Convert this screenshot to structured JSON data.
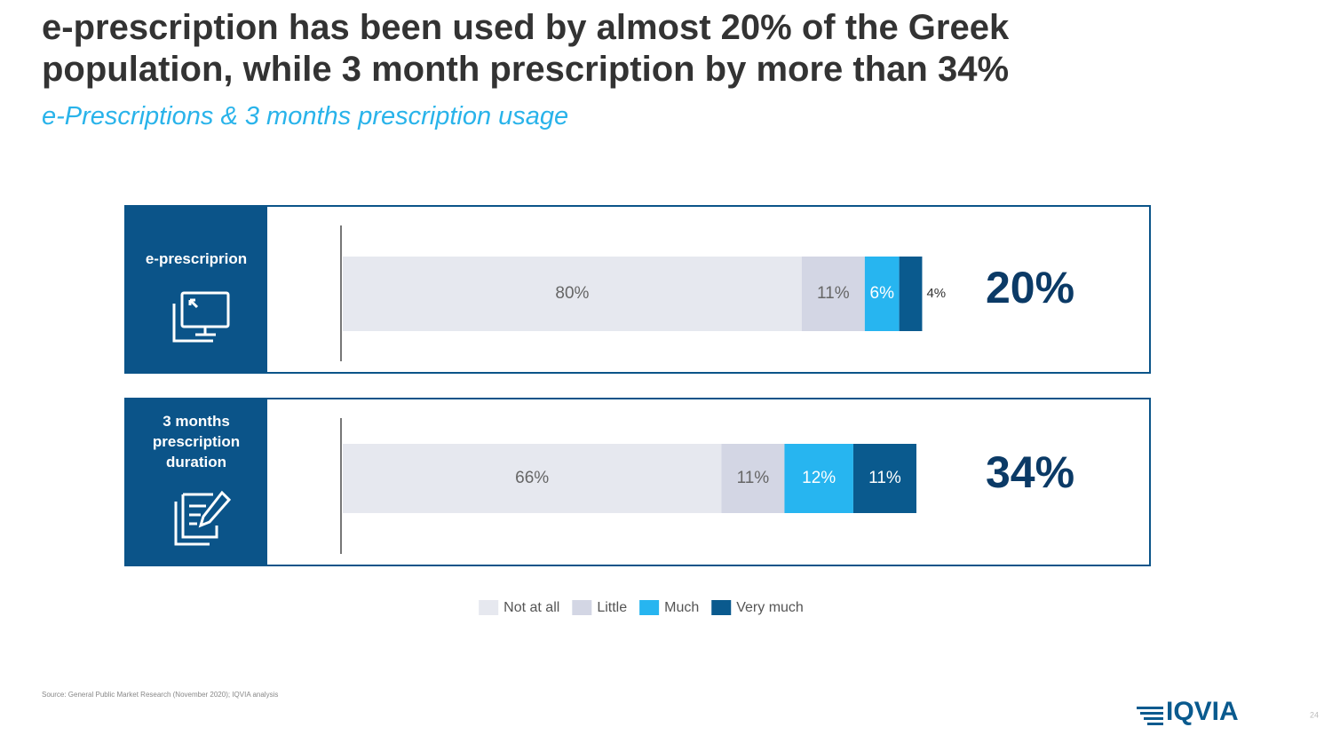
{
  "header": {
    "title": "e-prescription has been used by almost 20% of the Greek population, while 3 month prescription by more than 34%",
    "subtitle": "e-Prescriptions & 3 months prescription usage"
  },
  "chart_data": {
    "type": "bar",
    "orientation": "horizontal",
    "stacked": true,
    "categories": [
      "e-prescriprion",
      "3 months prescription duration"
    ],
    "series": [
      {
        "name": "Not at all",
        "color": "#e6e8ef",
        "values": [
          80,
          66
        ],
        "value_labels": [
          "80%",
          "66%"
        ]
      },
      {
        "name": "Little",
        "color": "#d3d6e4",
        "values": [
          11,
          11
        ],
        "value_labels": [
          "11%",
          "11%"
        ]
      },
      {
        "name": "Much",
        "color": "#27b5f0",
        "values": [
          6,
          12
        ],
        "value_labels": [
          "6%",
          "12%"
        ]
      },
      {
        "name": "Very much",
        "color": "#0a5a8e",
        "values": [
          4,
          11
        ],
        "value_labels": [
          "4%",
          "11%"
        ]
      }
    ],
    "xlim": [
      0,
      100
    ],
    "totals": {
      "values": [
        20,
        34
      ],
      "value_labels": [
        "20%",
        "34%"
      ]
    },
    "legend": "bottom"
  },
  "footer": {
    "source": "Source: General Public Market Research (November 2020); IQVIA analysis",
    "logo": "IQVIA",
    "page": "24"
  }
}
